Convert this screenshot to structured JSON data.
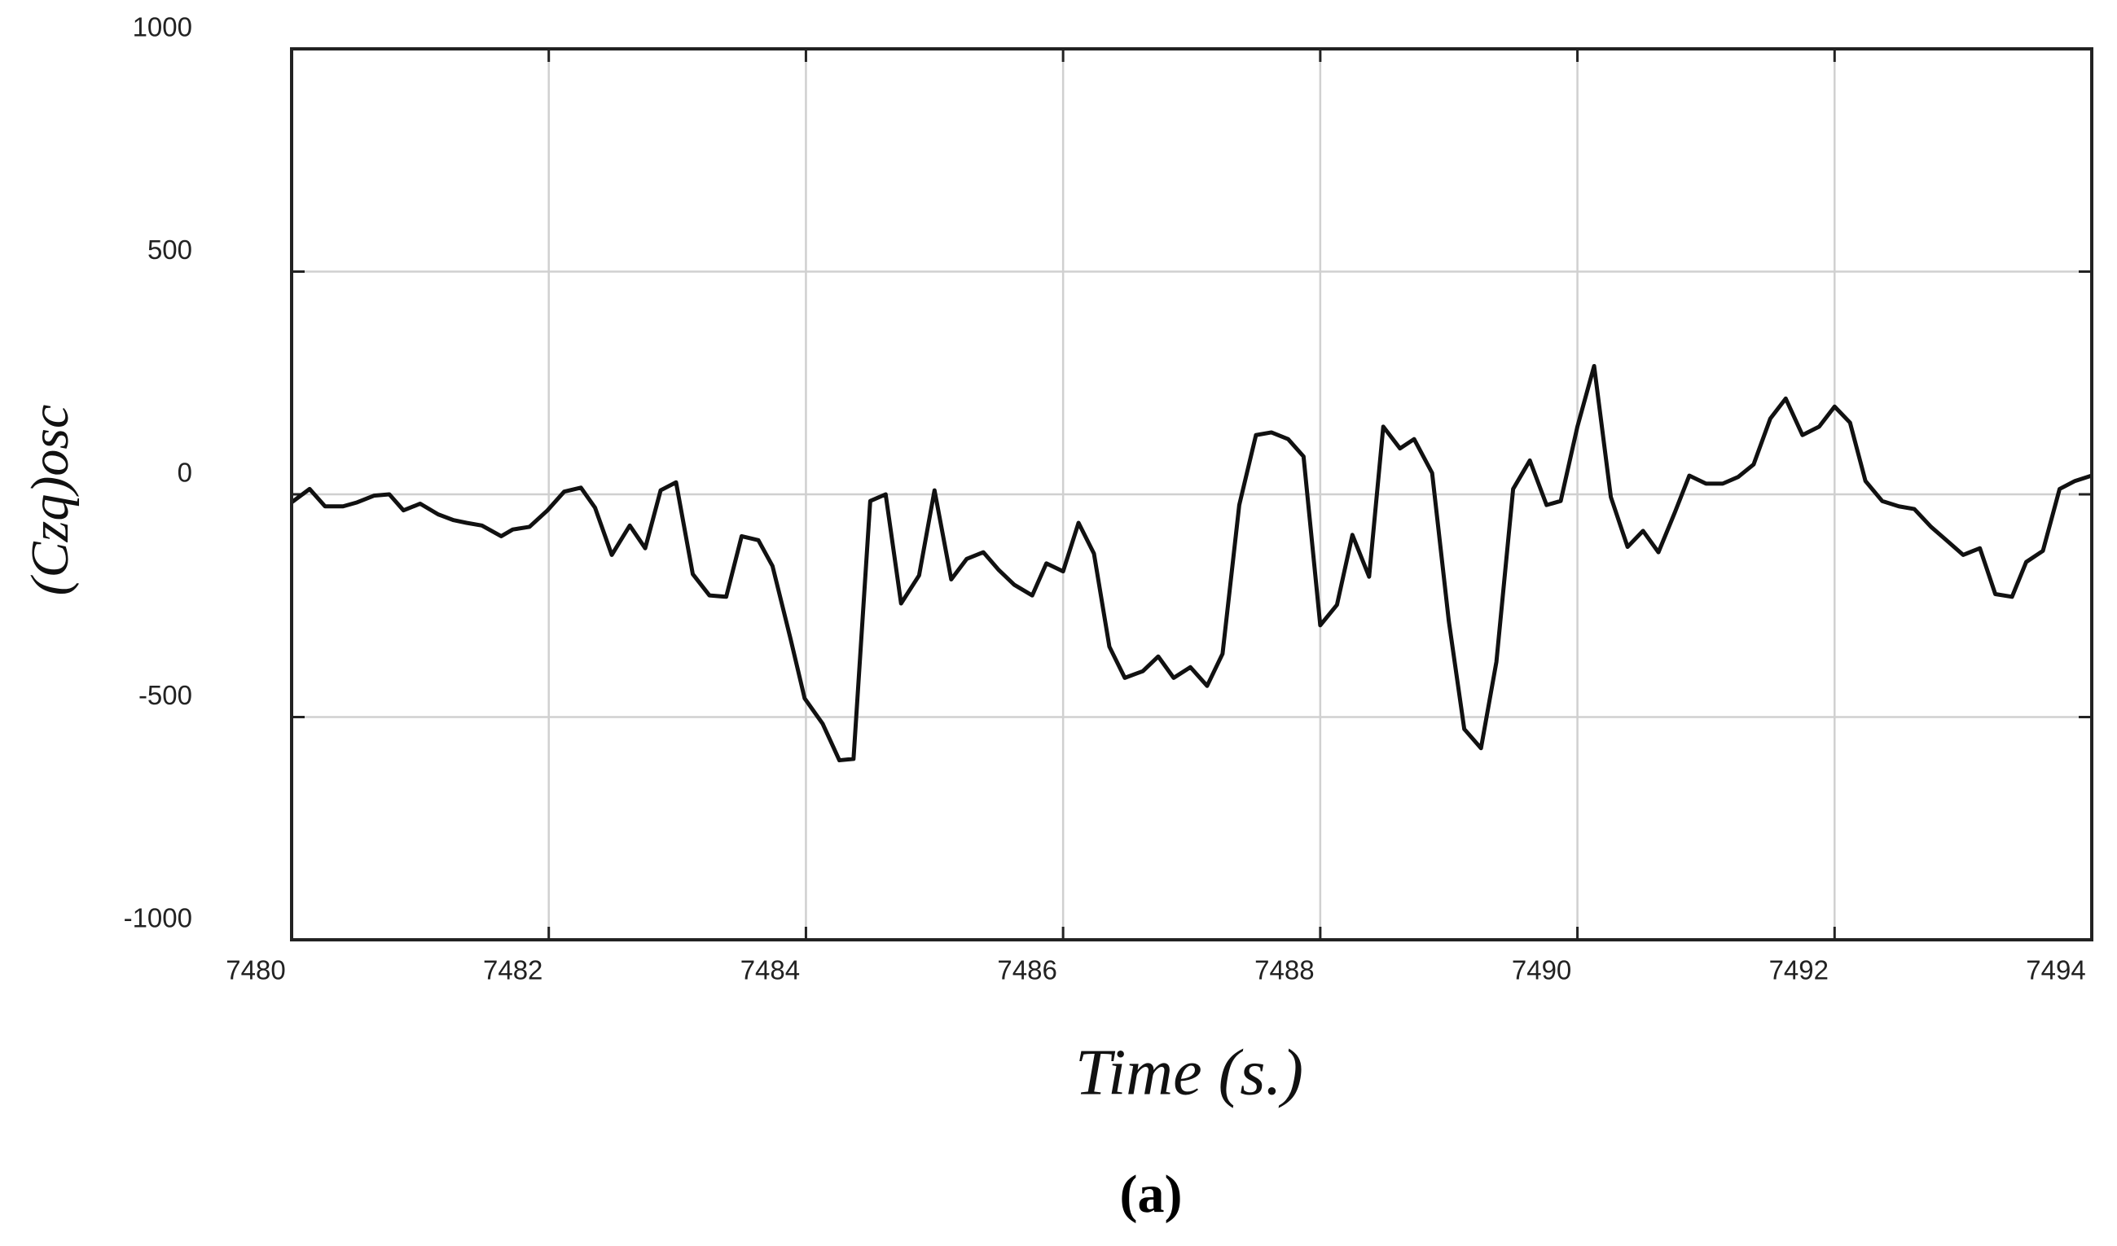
{
  "chart_data": {
    "type": "line",
    "xlabel": "Time (s.)",
    "ylabel": "(Czq)osc",
    "caption": "(a)",
    "grid": true,
    "xlim": [
      7480,
      7494
    ],
    "ylim": [
      -1000,
      1000
    ],
    "xticks": [
      7480,
      7482,
      7484,
      7486,
      7488,
      7490,
      7492,
      7494
    ],
    "yticks": [
      -1000,
      -500,
      0,
      500,
      1000
    ],
    "x": [
      7480.0,
      7480.14,
      7480.26,
      7480.4,
      7480.51,
      7480.64,
      7480.76,
      7480.87,
      7481.0,
      7481.14,
      7481.26,
      7481.36,
      7481.48,
      7481.63,
      7481.72,
      7481.85,
      7481.99,
      7482.12,
      7482.25,
      7482.36,
      7482.49,
      7482.63,
      7482.75,
      7482.87,
      7482.99,
      7483.12,
      7483.25,
      7483.38,
      7483.5,
      7483.63,
      7483.74,
      7483.88,
      7483.99,
      7484.13,
      7484.26,
      7484.37,
      7484.5,
      7484.62,
      7484.74,
      7484.88,
      7485.0,
      7485.13,
      7485.25,
      7485.38,
      7485.5,
      7485.62,
      7485.76,
      7485.87,
      7486.0,
      7486.12,
      7486.24,
      7486.36,
      7486.48,
      7486.62,
      7486.74,
      7486.86,
      7486.99,
      7487.12,
      7487.24,
      7487.37,
      7487.5,
      7487.62,
      7487.75,
      7487.87,
      7488.0,
      7488.13,
      7488.25,
      7488.38,
      7488.49,
      7488.62,
      7488.73,
      7488.87,
      7489.0,
      7489.12,
      7489.25,
      7489.37,
      7489.5,
      7489.63,
      7489.76,
      7489.87,
      7490.0,
      7490.13,
      7490.26,
      7490.39,
      7490.51,
      7490.63,
      7490.76,
      7490.87,
      7491.0,
      7491.13,
      7491.25,
      7491.37,
      7491.5,
      7491.62,
      7491.75,
      7491.88,
      7492.0,
      7492.12,
      7492.24,
      7492.37,
      7492.5,
      7492.62,
      7492.75,
      7492.87,
      7493.0,
      7493.13,
      7493.25,
      7493.38,
      7493.49,
      7493.62,
      7493.75,
      7493.87,
      7494.0
    ],
    "series": [
      {
        "color": "#111111",
        "values": [
          -18,
          12,
          -27,
          -27,
          -18,
          -3,
          0,
          -36,
          -21,
          -45,
          -58,
          -64,
          -70,
          -94,
          -79,
          -73,
          -36,
          6,
          15,
          -30,
          -136,
          -70,
          -121,
          9,
          27,
          -179,
          -227,
          -230,
          -94,
          -103,
          -161,
          -324,
          -458,
          -515,
          -597,
          -594,
          -15,
          0,
          -245,
          -182,
          9,
          -191,
          -145,
          -130,
          -170,
          -203,
          -227,
          -155,
          -173,
          -64,
          -133,
          -342,
          -412,
          -397,
          -364,
          -412,
          -388,
          -430,
          -358,
          -24,
          133,
          139,
          124,
          85,
          -294,
          -248,
          -91,
          -185,
          152,
          103,
          124,
          48,
          -285,
          -527,
          -570,
          -376,
          12,
          76,
          -24,
          -15,
          152,
          288,
          -6,
          -118,
          -82,
          -130,
          -39,
          42,
          24,
          24,
          39,
          67,
          170,
          215,
          133,
          152,
          197,
          161,
          30,
          -15,
          -27,
          -33,
          -73,
          -103,
          -136,
          -121,
          -224,
          -230,
          -152,
          -127,
          12,
          30,
          42
        ]
      }
    ]
  }
}
